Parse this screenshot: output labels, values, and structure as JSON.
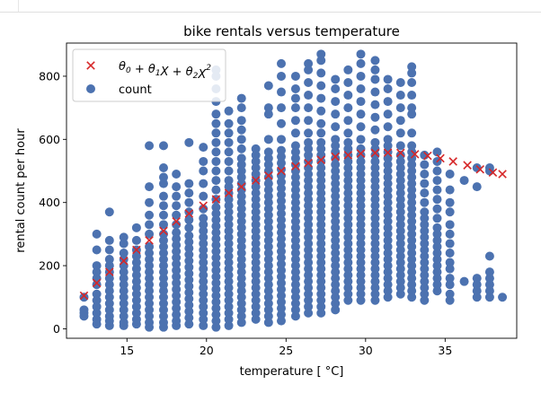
{
  "chart_data": {
    "type": "scatter",
    "title": "bike rentals versus temperature",
    "xlabel": "temperature [$^\\circ$C]",
    "xlabel_display": "temperature [ °C]",
    "ylabel": "rental count per hour",
    "xlim": [
      11.2,
      39.5
    ],
    "ylim": [
      -30,
      905
    ],
    "xticks": [
      15,
      20,
      25,
      30,
      35
    ],
    "yticks": [
      0,
      200,
      400,
      600,
      800
    ],
    "grid": false,
    "legend_position": "top-left",
    "legend": [
      {
        "marker": "x",
        "label": "θ0 + θ1X + θ2X²"
      },
      {
        "marker": "o",
        "label": "count"
      }
    ],
    "series": [
      {
        "name": "count",
        "color": "#4c72b0",
        "marker": "o",
        "columns": [
          {
            "x": 12.3,
            "y": [
              40,
              50,
              60,
              100
            ]
          },
          {
            "x": 13.1,
            "y": [
              15,
              30,
              50,
              70,
              90,
              110,
              140,
              160,
              180,
              200,
              250,
              300
            ]
          },
          {
            "x": 13.9,
            "y": [
              10,
              25,
              40,
              60,
              80,
              100,
              120,
              140,
              160,
              180,
              200,
              220,
              250,
              280,
              370
            ]
          },
          {
            "x": 14.8,
            "y": [
              10,
              20,
              40,
              60,
              80,
              100,
              120,
              140,
              160,
              180,
              200,
              220,
              240,
              270,
              290
            ]
          },
          {
            "x": 15.6,
            "y": [
              15,
              30,
              50,
              70,
              90,
              110,
              130,
              150,
              170,
              190,
              210,
              230,
              250,
              280,
              320
            ]
          },
          {
            "x": 16.4,
            "y": [
              5,
              20,
              40,
              60,
              80,
              100,
              120,
              140,
              160,
              180,
              200,
              220,
              240,
              260,
              300,
              330,
              360,
              400,
              450,
              580
            ]
          },
          {
            "x": 17.3,
            "y": [
              5,
              20,
              40,
              60,
              80,
              100,
              120,
              140,
              160,
              180,
              200,
              220,
              240,
              260,
              280,
              300,
              330,
              360,
              390,
              420,
              460,
              480,
              510,
              580
            ]
          },
          {
            "x": 18.1,
            "y": [
              10,
              25,
              45,
              65,
              85,
              105,
              125,
              145,
              165,
              185,
              205,
              225,
              245,
              265,
              285,
              305,
              330,
              360,
              390,
              420,
              450,
              490
            ]
          },
          {
            "x": 18.9,
            "y": [
              15,
              35,
              55,
              75,
              95,
              115,
              135,
              155,
              175,
              195,
              215,
              235,
              255,
              275,
              295,
              320,
              345,
              370,
              400,
              430,
              460,
              590
            ]
          },
          {
            "x": 19.8,
            "y": [
              10,
              30,
              50,
              70,
              90,
              110,
              130,
              150,
              170,
              190,
              210,
              230,
              250,
              270,
              290,
              310,
              330,
              350,
              380,
              420,
              460,
              500,
              530,
              575
            ]
          },
          {
            "x": 20.6,
            "y": [
              5,
              25,
              45,
              65,
              85,
              105,
              125,
              145,
              165,
              185,
              205,
              225,
              245,
              265,
              285,
              305,
              325,
              345,
              365,
              385,
              410,
              440,
              470,
              500,
              530,
              560,
              590,
              620,
              650,
              680,
              720,
              760,
              800,
              820
            ]
          },
          {
            "x": 21.4,
            "y": [
              10,
              30,
              50,
              70,
              90,
              110,
              130,
              150,
              170,
              190,
              210,
              230,
              250,
              270,
              290,
              310,
              330,
              350,
              370,
              390,
              410,
              430,
              450,
              470,
              500,
              530,
              560,
              590,
              620,
              650,
              690
            ]
          },
          {
            "x": 22.2,
            "y": [
              20,
              40,
              60,
              80,
              100,
              120,
              140,
              160,
              180,
              200,
              220,
              240,
              260,
              280,
              300,
              320,
              340,
              360,
              380,
              400,
              420,
              440,
              460,
              480,
              500,
              520,
              540,
              570,
              600,
              630,
              660,
              700,
              730
            ]
          },
          {
            "x": 23.1,
            "y": [
              30,
              50,
              70,
              90,
              110,
              130,
              150,
              170,
              190,
              210,
              230,
              250,
              270,
              290,
              310,
              330,
              350,
              370,
              390,
              410,
              430,
              450,
              470,
              490,
              510,
              530,
              550,
              570
            ]
          },
          {
            "x": 23.9,
            "y": [
              20,
              40,
              60,
              80,
              100,
              120,
              140,
              160,
              180,
              200,
              220,
              240,
              260,
              280,
              300,
              320,
              340,
              360,
              380,
              400,
              420,
              440,
              460,
              480,
              500,
              520,
              540,
              560,
              600,
              680,
              700,
              770
            ]
          },
          {
            "x": 24.7,
            "y": [
              25,
              45,
              65,
              85,
              105,
              125,
              145,
              165,
              185,
              205,
              225,
              245,
              265,
              285,
              305,
              325,
              345,
              365,
              385,
              405,
              425,
              445,
              465,
              485,
              505,
              525,
              545,
              565,
              600,
              650,
              700,
              750,
              800,
              840
            ]
          },
          {
            "x": 25.6,
            "y": [
              40,
              60,
              80,
              100,
              120,
              140,
              160,
              180,
              200,
              220,
              240,
              260,
              280,
              300,
              320,
              340,
              360,
              380,
              400,
              420,
              440,
              460,
              480,
              500,
              520,
              540,
              560,
              580,
              620,
              660,
              700,
              730,
              760,
              800
            ]
          },
          {
            "x": 26.4,
            "y": [
              50,
              70,
              90,
              110,
              130,
              150,
              170,
              190,
              210,
              230,
              250,
              270,
              290,
              310,
              330,
              350,
              370,
              390,
              410,
              430,
              450,
              470,
              490,
              510,
              530,
              550,
              570,
              590,
              620,
              660,
              700,
              740,
              780,
              820,
              840
            ]
          },
          {
            "x": 27.2,
            "y": [
              50,
              70,
              90,
              110,
              130,
              150,
              170,
              190,
              210,
              230,
              250,
              270,
              290,
              310,
              330,
              350,
              370,
              390,
              410,
              430,
              450,
              470,
              490,
              510,
              530,
              550,
              570,
              590,
              620,
              650,
              690,
              730,
              770,
              810,
              850,
              870
            ]
          },
          {
            "x": 28.1,
            "y": [
              60,
              80,
              100,
              120,
              140,
              160,
              180,
              200,
              220,
              240,
              260,
              280,
              300,
              320,
              340,
              360,
              380,
              400,
              420,
              440,
              460,
              480,
              500,
              520,
              540,
              560,
              580,
              600,
              640,
              680,
              720,
              760,
              790
            ]
          },
          {
            "x": 28.9,
            "y": [
              90,
              110,
              130,
              150,
              170,
              190,
              210,
              230,
              250,
              270,
              290,
              310,
              330,
              350,
              370,
              390,
              410,
              430,
              450,
              470,
              490,
              510,
              530,
              550,
              570,
              590,
              620,
              660,
              700,
              740,
              780,
              820
            ]
          },
          {
            "x": 29.7,
            "y": [
              90,
              110,
              130,
              150,
              170,
              190,
              210,
              230,
              250,
              270,
              290,
              310,
              330,
              350,
              370,
              390,
              410,
              430,
              450,
              470,
              490,
              510,
              530,
              550,
              570,
              600,
              640,
              680,
              720,
              760,
              800,
              840,
              870
            ]
          },
          {
            "x": 30.6,
            "y": [
              90,
              110,
              130,
              150,
              170,
              190,
              210,
              230,
              250,
              270,
              290,
              310,
              330,
              350,
              370,
              390,
              410,
              430,
              450,
              470,
              490,
              510,
              530,
              550,
              570,
              590,
              630,
              670,
              710,
              750,
              790,
              820,
              850
            ]
          },
          {
            "x": 31.4,
            "y": [
              100,
              120,
              140,
              160,
              180,
              200,
              220,
              240,
              260,
              280,
              300,
              320,
              340,
              360,
              380,
              400,
              420,
              440,
              460,
              480,
              500,
              520,
              540,
              560,
              580,
              600,
              640,
              680,
              720,
              760,
              790
            ]
          },
          {
            "x": 32.2,
            "y": [
              110,
              130,
              150,
              170,
              190,
              210,
              230,
              250,
              270,
              290,
              310,
              330,
              350,
              370,
              390,
              410,
              430,
              450,
              470,
              490,
              510,
              530,
              550,
              580,
              620,
              660,
              700,
              740,
              780
            ]
          },
          {
            "x": 32.9,
            "y": [
              100,
              120,
              140,
              160,
              180,
              200,
              220,
              240,
              260,
              280,
              300,
              320,
              340,
              360,
              380,
              400,
              420,
              440,
              460,
              480,
              500,
              520,
              540,
              560,
              580,
              620,
              680,
              700,
              740,
              780,
              810,
              830
            ]
          },
          {
            "x": 33.7,
            "y": [
              90,
              110,
              130,
              150,
              170,
              190,
              210,
              230,
              250,
              270,
              290,
              310,
              330,
              350,
              370,
              400,
              430,
              460,
              490,
              520,
              550
            ]
          },
          {
            "x": 34.5,
            "y": [
              120,
              140,
              160,
              180,
              200,
              220,
              240,
              260,
              280,
              300,
              320,
              350,
              380,
              410,
              440,
              470,
              500,
              530,
              560
            ]
          },
          {
            "x": 35.3,
            "y": [
              90,
              110,
              140,
              160,
              190,
              210,
              240,
              270,
              300,
              330,
              370,
              400,
              440,
              490
            ]
          },
          {
            "x": 36.2,
            "y": [
              150,
              470
            ]
          },
          {
            "x": 37.0,
            "y": [
              100,
              120,
              140,
              160,
              450,
              510
            ]
          },
          {
            "x": 37.8,
            "y": [
              100,
              120,
              140,
              160,
              180,
              230,
              500,
              510
            ]
          },
          {
            "x": 38.6,
            "y": [
              100
            ]
          }
        ]
      },
      {
        "name": "θ0 + θ1X + θ2X²",
        "color": "#d62728",
        "marker": "x",
        "x": [
          12.3,
          13.1,
          13.9,
          14.8,
          15.6,
          16.4,
          17.3,
          18.1,
          18.9,
          19.8,
          20.6,
          21.4,
          22.2,
          23.1,
          23.9,
          24.7,
          25.6,
          26.4,
          27.2,
          28.1,
          28.9,
          29.7,
          30.6,
          31.4,
          32.2,
          33.1,
          33.9,
          34.7,
          35.5,
          36.4,
          37.2,
          38.0,
          38.6
        ],
        "y": [
          105,
          145,
          180,
          215,
          250,
          280,
          310,
          340,
          365,
          390,
          410,
          430,
          450,
          470,
          485,
          500,
          515,
          525,
          535,
          545,
          550,
          555,
          557,
          558,
          557,
          553,
          548,
          540,
          530,
          518,
          505,
          495,
          490
        ]
      }
    ]
  }
}
